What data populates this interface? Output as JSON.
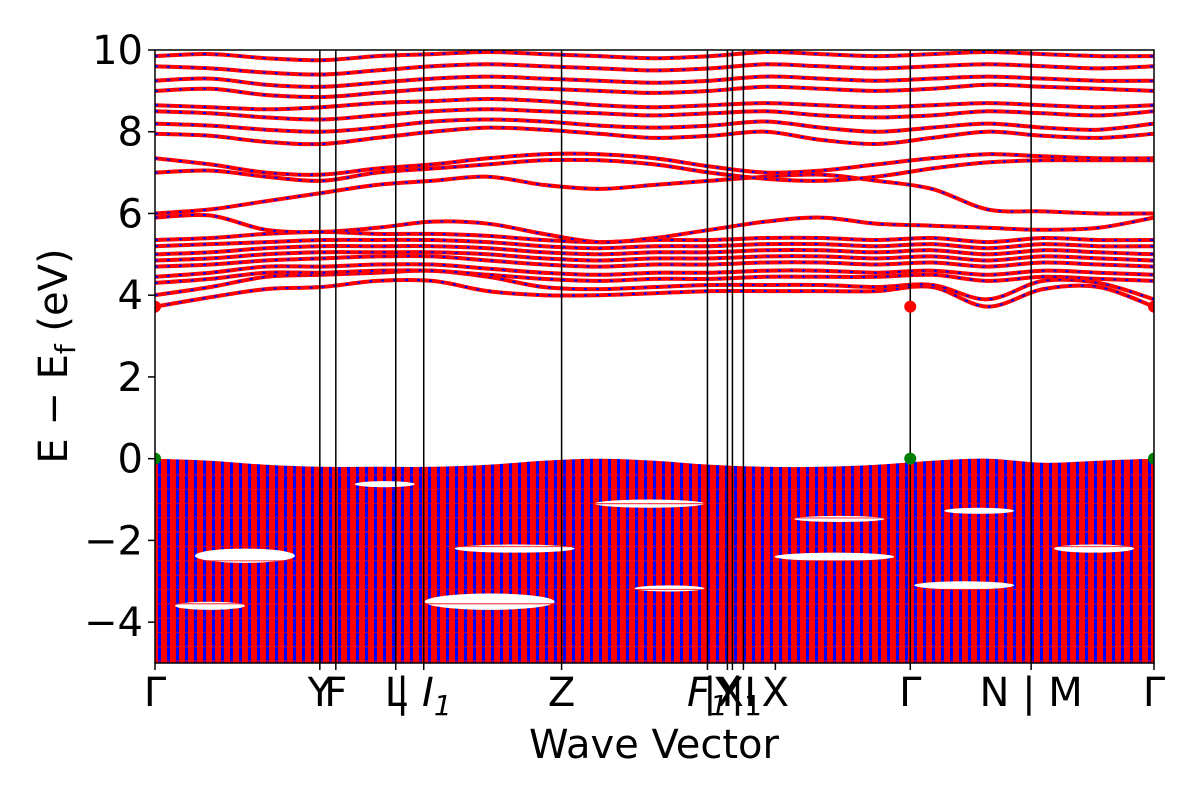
{
  "chart_data": {
    "type": "line",
    "title": "",
    "xlabel": "Wave Vector",
    "ylabel": "E − E_f (eV)",
    "ylabel_parts": {
      "main": "E − E",
      "sub": "f",
      "unit": " (eV)"
    },
    "ylim": [
      -5,
      10
    ],
    "yticks": [
      -4,
      -2,
      0,
      2,
      4,
      6,
      8,
      10
    ],
    "ytick_labels": [
      "−4",
      "−2",
      "0",
      "2",
      "4",
      "6",
      "8",
      "10"
    ],
    "xlim": [
      0,
      1
    ],
    "kpath": [
      {
        "label": "Γ",
        "x": 0.0
      },
      {
        "label": "Y",
        "x": 0.165
      },
      {
        "label": "F",
        "x": 0.181
      },
      {
        "label": "L",
        "x": 0.241
      },
      {
        "label": "| I",
        "sub": "1",
        "italic": true,
        "x": 0.269
      },
      {
        "label": "Z",
        "x": 0.407
      },
      {
        "label": "F",
        "sub": "1",
        "italic": true,
        "x": 0.553
      },
      {
        "label": "Y",
        "x": 0.573
      },
      {
        "label": "|X",
        "sub": "1",
        "x": 0.578
      },
      {
        "label": "|I",
        "x": 0.589
      },
      {
        "label": "X",
        "x": 0.621
      },
      {
        "label": "Γ",
        "x": 0.756
      },
      {
        "label": "N | M",
        "x": 0.877
      },
      {
        "label": "Γ",
        "x": 1.0
      }
    ],
    "kpath_lines_x": [
      0.165,
      0.181,
      0.241,
      0.269,
      0.407,
      0.553,
      0.573,
      0.578,
      0.589,
      0.756,
      0.877
    ],
    "series": [
      {
        "color": "#ff0000",
        "style": "solid"
      },
      {
        "color": "#0000ff",
        "style": "dashed"
      }
    ],
    "conduction_bands": [
      [
        3.72,
        3.95,
        4.15,
        4.2,
        4.35,
        4.35,
        4.1,
        4.0,
        4.0,
        4.05,
        4.1,
        4.1,
        4.1,
        4.1,
        4.2,
        3.72,
        4.15,
        4.2,
        3.72
      ],
      [
        4.0,
        4.2,
        4.45,
        4.5,
        4.55,
        4.6,
        4.45,
        4.2,
        4.15,
        4.2,
        4.25,
        4.25,
        4.25,
        4.2,
        4.25,
        3.9,
        4.35,
        4.3,
        3.9
      ],
      [
        4.3,
        4.4,
        4.55,
        4.55,
        4.6,
        4.6,
        4.5,
        4.4,
        4.35,
        4.4,
        4.4,
        4.45,
        4.45,
        4.45,
        4.5,
        4.35,
        4.45,
        4.4,
        4.35
      ],
      [
        4.45,
        4.55,
        4.7,
        4.7,
        4.75,
        4.75,
        4.65,
        4.55,
        4.5,
        4.55,
        4.55,
        4.6,
        4.6,
        4.55,
        4.6,
        4.5,
        4.6,
        4.55,
        4.5
      ],
      [
        4.7,
        4.75,
        4.85,
        4.9,
        4.95,
        4.95,
        4.85,
        4.75,
        4.7,
        4.75,
        4.75,
        4.8,
        4.8,
        4.75,
        4.8,
        4.7,
        4.8,
        4.75,
        4.7
      ],
      [
        4.85,
        4.9,
        5.0,
        5.05,
        5.05,
        5.05,
        5.0,
        4.9,
        4.85,
        4.9,
        4.9,
        4.95,
        4.95,
        4.9,
        4.95,
        4.85,
        4.95,
        4.9,
        4.85
      ],
      [
        5.0,
        5.05,
        5.15,
        5.2,
        5.2,
        5.2,
        5.15,
        5.05,
        5.0,
        5.05,
        5.05,
        5.1,
        5.1,
        5.05,
        5.1,
        5.0,
        5.1,
        5.05,
        5.0
      ],
      [
        5.2,
        5.25,
        5.3,
        5.35,
        5.35,
        5.35,
        5.3,
        5.2,
        5.15,
        5.2,
        5.2,
        5.25,
        5.25,
        5.2,
        5.25,
        5.15,
        5.25,
        5.2,
        5.2
      ],
      [
        5.35,
        5.4,
        5.5,
        5.55,
        5.5,
        5.5,
        5.45,
        5.35,
        5.3,
        5.35,
        5.35,
        5.4,
        5.4,
        5.35,
        5.4,
        5.3,
        5.4,
        5.35,
        5.35
      ],
      [
        5.9,
        5.95,
        5.6,
        5.55,
        5.65,
        5.8,
        5.75,
        5.5,
        5.3,
        5.4,
        5.6,
        5.8,
        5.9,
        5.75,
        5.7,
        5.65,
        5.6,
        5.65,
        5.9
      ],
      [
        6.0,
        6.1,
        6.3,
        6.5,
        6.7,
        6.8,
        6.9,
        6.7,
        6.6,
        6.7,
        6.8,
        6.9,
        6.95,
        6.8,
        6.6,
        6.1,
        6.05,
        6.0,
        6.0
      ],
      [
        7.0,
        7.05,
        6.9,
        6.8,
        7.0,
        7.1,
        7.2,
        7.3,
        7.3,
        7.2,
        7.0,
        6.85,
        6.8,
        6.9,
        7.1,
        7.25,
        7.3,
        7.3,
        7.3
      ],
      [
        7.35,
        7.2,
        7.0,
        6.95,
        7.1,
        7.2,
        7.35,
        7.45,
        7.45,
        7.35,
        7.15,
        7.0,
        7.05,
        7.2,
        7.35,
        7.45,
        7.4,
        7.35,
        7.35
      ],
      [
        7.95,
        7.9,
        7.75,
        7.7,
        7.85,
        8.0,
        8.1,
        8.05,
        7.95,
        7.85,
        7.9,
        8.0,
        7.8,
        7.7,
        7.85,
        8.0,
        7.9,
        7.85,
        7.95
      ],
      [
        8.2,
        8.15,
        8.05,
        8.0,
        8.1,
        8.25,
        8.3,
        8.25,
        8.15,
        8.1,
        8.15,
        8.25,
        8.1,
        8.0,
        8.1,
        8.2,
        8.1,
        8.05,
        8.2
      ],
      [
        8.5,
        8.45,
        8.35,
        8.3,
        8.4,
        8.5,
        8.55,
        8.5,
        8.45,
        8.4,
        8.45,
        8.5,
        8.4,
        8.35,
        8.4,
        8.5,
        8.45,
        8.4,
        8.5
      ],
      [
        8.65,
        8.6,
        8.55,
        8.6,
        8.7,
        8.75,
        8.8,
        8.75,
        8.65,
        8.6,
        8.65,
        8.7,
        8.65,
        8.6,
        8.65,
        8.7,
        8.65,
        8.6,
        8.65
      ],
      [
        9.0,
        9.05,
        8.9,
        8.85,
        8.95,
        9.05,
        9.1,
        9.05,
        9.0,
        8.95,
        9.0,
        9.1,
        9.05,
        9.0,
        9.05,
        9.15,
        9.1,
        9.05,
        9.0
      ],
      [
        9.25,
        9.3,
        9.15,
        9.1,
        9.2,
        9.3,
        9.35,
        9.3,
        9.25,
        9.2,
        9.25,
        9.35,
        9.3,
        9.25,
        9.3,
        9.35,
        9.3,
        9.25,
        9.25
      ],
      [
        9.6,
        9.55,
        9.45,
        9.4,
        9.5,
        9.6,
        9.65,
        9.6,
        9.55,
        9.5,
        9.55,
        9.65,
        9.6,
        9.55,
        9.6,
        9.65,
        9.6,
        9.55,
        9.6
      ],
      [
        9.85,
        9.9,
        9.8,
        9.75,
        9.85,
        9.9,
        9.95,
        9.9,
        9.85,
        9.8,
        9.85,
        9.95,
        9.9,
        9.85,
        9.9,
        9.95,
        9.9,
        9.85,
        9.85
      ]
    ],
    "valence_band_region": {
      "top": 0.0,
      "bottom": -5.0
    },
    "valence_band_top": [
      0.0,
      -0.05,
      -0.15,
      -0.2,
      -0.2,
      -0.2,
      -0.15,
      -0.05,
      0.0,
      -0.05,
      -0.15,
      -0.2,
      -0.2,
      -0.15,
      -0.05,
      0.0,
      -0.1,
      -0.05,
      0.0
    ],
    "valence_band_gaps": [
      {
        "x": [
          0.04,
          0.14
        ],
        "y": [
          -2.2,
          -2.55
        ]
      },
      {
        "x": [
          0.02,
          0.09
        ],
        "y": [
          -3.5,
          -3.7
        ]
      },
      {
        "x": [
          0.27,
          0.4
        ],
        "y": [
          -3.3,
          -3.7
        ]
      },
      {
        "x": [
          0.3,
          0.42
        ],
        "y": [
          -2.1,
          -2.3
        ]
      },
      {
        "x": [
          0.44,
          0.55
        ],
        "y": [
          -1.0,
          -1.2
        ]
      },
      {
        "x": [
          0.62,
          0.74
        ],
        "y": [
          -2.3,
          -2.5
        ]
      },
      {
        "x": [
          0.64,
          0.73
        ],
        "y": [
          -1.4,
          -1.55
        ]
      },
      {
        "x": [
          0.79,
          0.86
        ],
        "y": [
          -1.2,
          -1.35
        ]
      },
      {
        "x": [
          0.9,
          0.98
        ],
        "y": [
          -2.1,
          -2.3
        ]
      },
      {
        "x": [
          0.2,
          0.26
        ],
        "y": [
          -0.55,
          -0.7
        ]
      },
      {
        "x": [
          0.48,
          0.55
        ],
        "y": [
          -3.1,
          -3.25
        ]
      },
      {
        "x": [
          0.76,
          0.86
        ],
        "y": [
          -3.0,
          -3.2
        ]
      }
    ],
    "markers": [
      {
        "x": 0.0,
        "y": 3.72,
        "color": "#ff0000"
      },
      {
        "x": 0.756,
        "y": 3.72,
        "color": "#ff0000"
      },
      {
        "x": 1.0,
        "y": 3.72,
        "color": "#ff0000"
      },
      {
        "x": 0.0,
        "y": 0.0,
        "color": "#008000"
      },
      {
        "x": 0.756,
        "y": 0.0,
        "color": "#008000"
      },
      {
        "x": 1.0,
        "y": 0.0,
        "color": "#008000"
      }
    ],
    "grid": false,
    "legend": "none"
  }
}
